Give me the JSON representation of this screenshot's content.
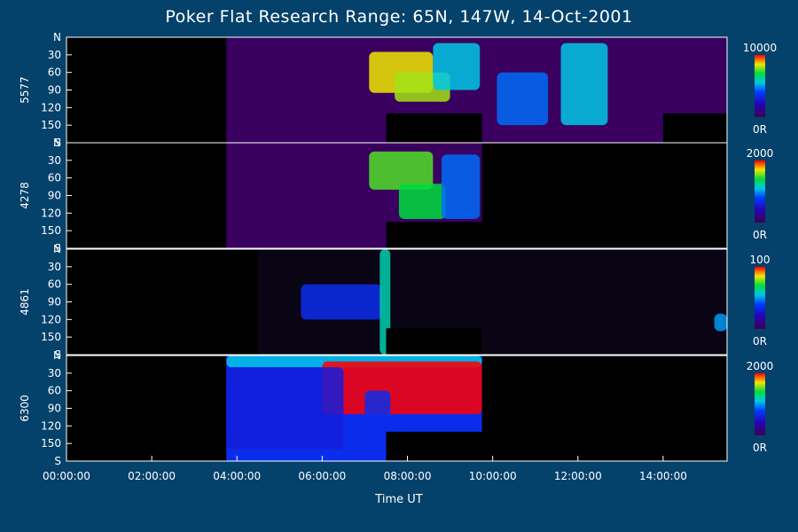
{
  "title": "Poker Flat Research Range: 65N, 147W, 14-Oct-2001",
  "colors": {
    "background": "#04416b",
    "frame": "#ffffff",
    "text": "#ffffff"
  },
  "chart_data": {
    "type": "heatmap",
    "description_free": true,
    "xlabel": "Time UT",
    "x_ticks": [
      "00:00:00",
      "02:00:00",
      "04:00:00",
      "06:00:00",
      "08:00:00",
      "10:00:00",
      "12:00:00",
      "14:00:00"
    ],
    "x_range_hours": [
      0,
      15.5
    ],
    "y_ticks": [
      "N",
      "30",
      "60",
      "90",
      "120",
      "150",
      "S"
    ],
    "y_range_deg": [
      0,
      180
    ],
    "panels": [
      {
        "wavelength": "5577",
        "colorbar_max": "10000",
        "colorbar_min": "0R",
        "data_start_hour": 3.75,
        "bands": [
          {
            "start": 7.1,
            "end": 8.6,
            "from": 25,
            "to": 95,
            "intensity": 0.85
          },
          {
            "start": 7.7,
            "end": 9.0,
            "from": 60,
            "to": 110,
            "intensity": 0.8
          },
          {
            "start": 8.6,
            "end": 9.7,
            "from": 10,
            "to": 90,
            "intensity": 0.55
          },
          {
            "start": 11.6,
            "end": 12.7,
            "from": 10,
            "to": 150,
            "intensity": 0.55
          },
          {
            "start": 10.1,
            "end": 11.3,
            "from": 60,
            "to": 150,
            "intensity": 0.45
          }
        ],
        "gaps": [
          {
            "start": 7.5,
            "end": 9.75,
            "from": 130,
            "to": 180
          },
          {
            "start": 14.0,
            "end": 15.5,
            "from": 130,
            "to": 180
          }
        ]
      },
      {
        "wavelength": "4278",
        "colorbar_max": "2000",
        "colorbar_min": "0R",
        "data_start_hour": 3.75,
        "data_end_hour": 9.75,
        "bands": [
          {
            "start": 7.1,
            "end": 8.6,
            "from": 15,
            "to": 80,
            "intensity": 0.75
          },
          {
            "start": 7.8,
            "end": 8.9,
            "from": 70,
            "to": 130,
            "intensity": 0.7
          },
          {
            "start": 8.8,
            "end": 9.7,
            "from": 20,
            "to": 130,
            "intensity": 0.45
          }
        ],
        "gaps": [
          {
            "start": 7.5,
            "end": 9.75,
            "from": 135,
            "to": 180
          },
          {
            "start": 9.75,
            "end": 15.5,
            "from": 0,
            "to": 180
          }
        ]
      },
      {
        "wavelength": "4861",
        "colorbar_max": "100",
        "colorbar_min": "0R",
        "data_start_hour": 4.5,
        "bands": [
          {
            "start": 5.5,
            "end": 7.4,
            "from": 60,
            "to": 120,
            "intensity": 0.35
          },
          {
            "start": 7.35,
            "end": 7.6,
            "from": 0,
            "to": 180,
            "intensity": 0.6
          },
          {
            "start": 15.2,
            "end": 15.5,
            "from": 110,
            "to": 140,
            "intensity": 0.5
          }
        ],
        "gaps": [
          {
            "start": 7.5,
            "end": 9.75,
            "from": 135,
            "to": 180
          }
        ]
      },
      {
        "wavelength": "6300",
        "colorbar_max": "2000",
        "colorbar_min": "0R",
        "data_start_hour": 3.75,
        "data_end_hour": 9.75,
        "bands": [
          {
            "start": 3.75,
            "end": 9.75,
            "from": 0,
            "to": 20,
            "intensity": 0.55
          },
          {
            "start": 6.0,
            "end": 9.75,
            "from": 10,
            "to": 100,
            "intensity": 1.0
          },
          {
            "start": 3.75,
            "end": 6.5,
            "from": 20,
            "to": 160,
            "intensity": 0.3
          },
          {
            "start": 7.0,
            "end": 7.6,
            "from": 60,
            "to": 180,
            "intensity": 0.35
          }
        ],
        "gaps": [
          {
            "start": 7.5,
            "end": 9.75,
            "from": 130,
            "to": 180
          },
          {
            "start": 9.75,
            "end": 15.5,
            "from": 0,
            "to": 180
          }
        ]
      }
    ]
  }
}
